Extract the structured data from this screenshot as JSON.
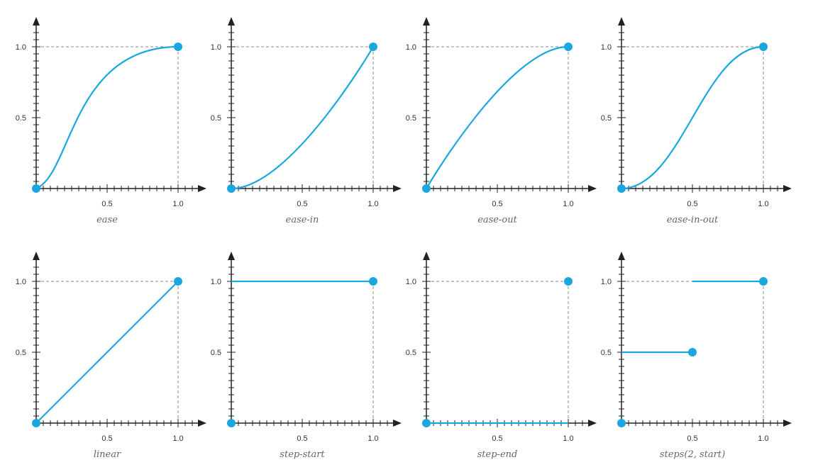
{
  "style": {
    "curve_color": "#1aa7e0",
    "axis_color": "#222222",
    "guide_color": "#8a8a8a"
  },
  "axis_ticks": {
    "x_labels": [
      "0.5",
      "1.0"
    ],
    "y_labels": [
      "0.5",
      "1.0"
    ]
  },
  "chart_data": [
    {
      "type": "line",
      "title": "ease",
      "curve": "cubic-bezier",
      "control_points": [
        0.25,
        0.1,
        0.25,
        1.0
      ],
      "endpoints": [
        [
          0,
          0
        ],
        [
          1,
          1
        ]
      ],
      "xlim": [
        0,
        1
      ],
      "ylim": [
        0,
        1
      ]
    },
    {
      "type": "line",
      "title": "ease-in",
      "curve": "cubic-bezier",
      "control_points": [
        0.42,
        0,
        1.0,
        1.0
      ],
      "endpoints": [
        [
          0,
          0
        ],
        [
          1,
          1
        ]
      ],
      "xlim": [
        0,
        1
      ],
      "ylim": [
        0,
        1
      ]
    },
    {
      "type": "line",
      "title": "ease-out",
      "curve": "cubic-bezier",
      "control_points": [
        0,
        0,
        0.58,
        1.0
      ],
      "endpoints": [
        [
          0,
          0
        ],
        [
          1,
          1
        ]
      ],
      "xlim": [
        0,
        1
      ],
      "ylim": [
        0,
        1
      ]
    },
    {
      "type": "line",
      "title": "ease-in-out",
      "curve": "cubic-bezier",
      "control_points": [
        0.42,
        0,
        0.58,
        1.0
      ],
      "endpoints": [
        [
          0,
          0
        ],
        [
          1,
          1
        ]
      ],
      "xlim": [
        0,
        1
      ],
      "ylim": [
        0,
        1
      ]
    },
    {
      "type": "line",
      "title": "linear",
      "curve": "polyline",
      "points": [
        [
          0,
          0
        ],
        [
          1,
          1
        ]
      ],
      "endpoints": [
        [
          0,
          0
        ],
        [
          1,
          1
        ]
      ],
      "xlim": [
        0,
        1
      ],
      "ylim": [
        0,
        1
      ]
    },
    {
      "type": "line",
      "title": "step-start",
      "curve": "polyline",
      "points": [
        [
          0,
          1
        ],
        [
          1,
          1
        ]
      ],
      "endpoints": [
        [
          0,
          0
        ],
        [
          1,
          1
        ]
      ],
      "xlim": [
        0,
        1
      ],
      "ylim": [
        0,
        1
      ]
    },
    {
      "type": "line",
      "title": "step-end",
      "curve": "polyline",
      "points": [
        [
          0,
          0
        ],
        [
          1,
          0
        ]
      ],
      "endpoints": [
        [
          0,
          0
        ],
        [
          1,
          1
        ]
      ],
      "xlim": [
        0,
        1
      ],
      "ylim": [
        0,
        1
      ]
    },
    {
      "type": "line",
      "title": "steps(2, start)",
      "curve": "segments",
      "segments": [
        [
          [
            0,
            0.5
          ],
          [
            0.5,
            0.5
          ]
        ],
        [
          [
            0.5,
            1
          ],
          [
            1,
            1
          ]
        ]
      ],
      "endpoints": [
        [
          0,
          0
        ],
        [
          0.5,
          0.5
        ],
        [
          1,
          1
        ]
      ],
      "xlim": [
        0,
        1
      ],
      "ylim": [
        0,
        1
      ]
    }
  ]
}
